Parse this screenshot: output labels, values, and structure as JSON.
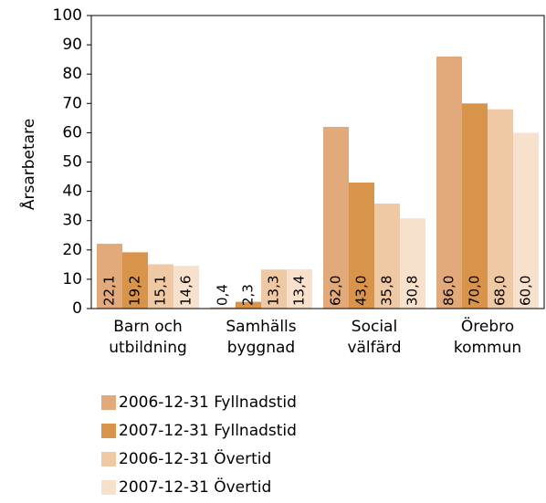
{
  "chart_data": {
    "type": "bar",
    "y_label": "Årsarbetare",
    "categories": [
      [
        "Barn och",
        "utbildning"
      ],
      [
        "Samhälls",
        "byggnad"
      ],
      [
        "Social",
        "välfärd"
      ],
      [
        "Örebro",
        "kommun"
      ]
    ],
    "series": [
      {
        "name": "2006-12-31 Fyllnadstid",
        "color": "#e2aa7a",
        "values": [
          22.1,
          0.4,
          62.0,
          86.0
        ],
        "value_labels": [
          "22,1",
          "0,4",
          "62,0",
          "86,0"
        ]
      },
      {
        "name": "2007-12-31 Fyllnadstid",
        "color": "#d9944c",
        "values": [
          19.2,
          2.3,
          43.0,
          70.0
        ],
        "value_labels": [
          "19,2",
          "2,3",
          "43,0",
          "70,0"
        ]
      },
      {
        "name": "2006-12-31 Övertid",
        "color": "#efc8a4",
        "values": [
          15.1,
          13.3,
          35.8,
          68.0
        ],
        "value_labels": [
          "15,1",
          "13,3",
          "35,8",
          "68,0"
        ]
      },
      {
        "name": "2007-12-31 Övertid",
        "color": "#f7e1cd",
        "values": [
          14.6,
          13.4,
          30.8,
          60.0
        ],
        "value_labels": [
          "14,6",
          "13,4",
          "30,8",
          "60,0"
        ]
      }
    ],
    "ylim": [
      0,
      100
    ],
    "yticks": [
      0,
      10,
      20,
      30,
      40,
      50,
      60,
      70,
      80,
      90,
      100
    ]
  }
}
